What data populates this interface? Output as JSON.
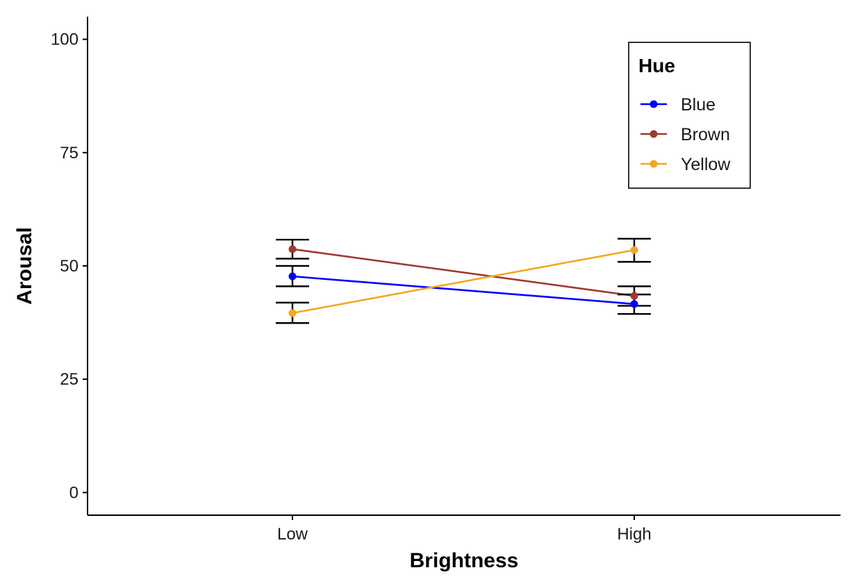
{
  "chart_data": {
    "type": "line",
    "xlabel": "Brightness",
    "ylabel": "Arousal",
    "categories": [
      "Low",
      "High"
    ],
    "ylim": [
      -5,
      105
    ],
    "yticks": [
      0,
      25,
      50,
      75,
      100
    ],
    "grid": false,
    "legend": {
      "title": "Hue",
      "position": "top-right",
      "boxed": true
    },
    "error_bars": true,
    "series": [
      {
        "name": "Blue",
        "color": "#0000ff",
        "values": [
          47.7,
          41.6
        ],
        "error_low": [
          45.5,
          39.4
        ],
        "error_high": [
          50.0,
          43.7
        ]
      },
      {
        "name": "Brown",
        "color": "#a0392f",
        "values": [
          53.7,
          43.4
        ],
        "error_low": [
          51.6,
          41.2
        ],
        "error_high": [
          55.8,
          45.5
        ]
      },
      {
        "name": "Yellow",
        "color": "#f5a623",
        "values": [
          39.6,
          53.5
        ],
        "error_low": [
          37.4,
          50.9
        ],
        "error_high": [
          41.9,
          56.0
        ]
      }
    ]
  }
}
